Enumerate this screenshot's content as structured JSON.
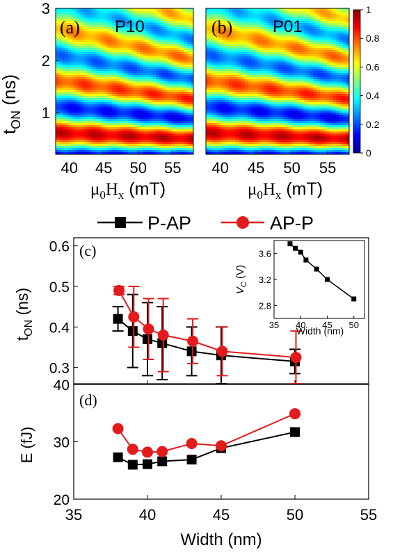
{
  "chart_data": [
    {
      "id": "a",
      "type": "heatmap",
      "panel_label": "(a)",
      "title": "P10",
      "xlabel_base": "μ",
      "xlabel_sub1": "0",
      "xlabel_mid": "H",
      "xlabel_sub2": "x",
      "xlabel_unit": " (mT)",
      "ylabel_base": "t",
      "ylabel_sub": "ON",
      "ylabel_unit": " (ns)",
      "xlim": [
        38,
        58
      ],
      "ylim": [
        0.2,
        3.0
      ],
      "xticks": [
        40,
        45,
        50,
        55
      ],
      "yticks": [
        1,
        2,
        3
      ],
      "colormap": "jet",
      "clim": [
        0,
        1
      ]
    },
    {
      "id": "b",
      "type": "heatmap",
      "panel_label": "(b)",
      "title": "P01",
      "xlabel_base": "μ",
      "xlabel_sub1": "0",
      "xlabel_mid": "H",
      "xlabel_sub2": "x",
      "xlabel_unit": " (mT)",
      "xlim": [
        38,
        58
      ],
      "ylim": [
        0.2,
        3.0
      ],
      "xticks": [
        40,
        45,
        50,
        55
      ],
      "colormap": "jet",
      "clim": [
        0,
        1
      ]
    },
    {
      "id": "colorbar",
      "type": "heatmap",
      "ticks": [
        "1",
        "0.8",
        "0.6",
        "0.4",
        "0.2",
        "0"
      ],
      "range": [
        0,
        1
      ]
    },
    {
      "id": "c",
      "type": "line",
      "panel_label": "(c)",
      "ylabel_base": "t",
      "ylabel_sub": "ON",
      "ylabel_unit": " (ns)",
      "ylim": [
        0.26,
        0.62
      ],
      "yticks": [
        "0.3",
        "0.4",
        "0.5",
        "0.6"
      ],
      "x": [
        38,
        39,
        40,
        41,
        43,
        45,
        50
      ],
      "series": [
        {
          "name": "P-AP",
          "color": "#000000",
          "marker": "square",
          "values": [
            0.42,
            0.39,
            0.37,
            0.36,
            0.34,
            0.33,
            0.315
          ],
          "err": [
            0.03,
            0.09,
            0.09,
            0.09,
            0.06,
            0.07,
            0.03
          ]
        },
        {
          "name": "AP-P",
          "color": "#e41a1c",
          "marker": "circle",
          "values": [
            0.49,
            0.425,
            0.395,
            0.38,
            0.365,
            0.34,
            0.325
          ],
          "err": [
            0.01,
            0.075,
            0.075,
            0.09,
            0.055,
            0.06,
            0.065
          ]
        }
      ],
      "inset": {
        "xlabel": "Width (nm)",
        "ylabel_base": "V",
        "ylabel_sub": "C",
        "ylabel_unit": " (V)",
        "xlim": [
          35,
          52
        ],
        "ylim": [
          2.6,
          3.8
        ],
        "xticks": [
          "35",
          "40",
          "45",
          "50"
        ],
        "yticks": [
          "2.8",
          "3.2",
          "3.6"
        ],
        "x": [
          38,
          39,
          40,
          41,
          43,
          45,
          50
        ],
        "values": [
          3.75,
          3.68,
          3.62,
          3.5,
          3.36,
          3.2,
          2.9
        ]
      }
    },
    {
      "id": "d",
      "type": "line",
      "panel_label": "(d)",
      "ylabel": "E (fJ)",
      "xlabel": "Width (nm)",
      "xlim": [
        35,
        55
      ],
      "ylim": [
        20,
        40
      ],
      "xticks": [
        "35",
        "40",
        "45",
        "50",
        "55"
      ],
      "yticks": [
        "20",
        "30",
        "40"
      ],
      "x": [
        38,
        39,
        40,
        41,
        43,
        45,
        50
      ],
      "series": [
        {
          "name": "P-AP",
          "color": "#000000",
          "marker": "square",
          "values": [
            27.3,
            26.0,
            26.1,
            26.6,
            26.9,
            28.9,
            31.7
          ]
        },
        {
          "name": "AP-P",
          "color": "#e41a1c",
          "marker": "circle",
          "values": [
            32.3,
            28.7,
            28.2,
            28.3,
            29.7,
            29.3,
            34.9
          ]
        }
      ]
    }
  ],
  "legend": {
    "entries": [
      {
        "label": "P-AP",
        "color": "#000000",
        "marker": "square"
      },
      {
        "label": "AP-P",
        "color": "#e41a1c",
        "marker": "circle"
      }
    ]
  }
}
